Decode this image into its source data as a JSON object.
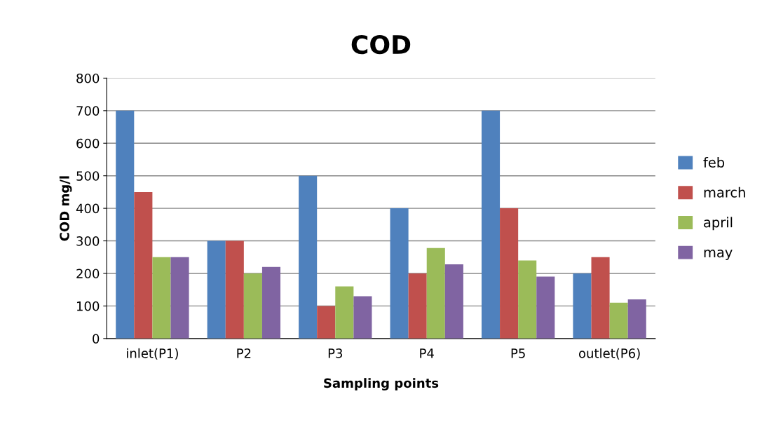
{
  "chart_data": {
    "type": "bar",
    "title": "COD",
    "xlabel": "Sampling points",
    "ylabel": "COD mg/l",
    "categories": [
      "inlet(P1)",
      "P2",
      "P3",
      "P4",
      "P5",
      "outlet(P6)"
    ],
    "series": [
      {
        "name": "feb",
        "color": "#4f81bd",
        "values": [
          700,
          300,
          500,
          400,
          700,
          200
        ]
      },
      {
        "name": "march",
        "color": "#c0504d",
        "values": [
          450,
          300,
          100,
          200,
          400,
          250
        ]
      },
      {
        "name": "april",
        "color": "#9bbb59",
        "values": [
          250,
          200,
          160,
          278,
          240,
          110
        ]
      },
      {
        "name": "may",
        "color": "#8064a2",
        "values": [
          250,
          220,
          130,
          228,
          190,
          120
        ]
      }
    ],
    "ylim": [
      0,
      800
    ],
    "yticks": [
      0,
      100,
      200,
      300,
      400,
      500,
      600,
      700,
      800
    ],
    "grid": "y",
    "legend": "right"
  }
}
